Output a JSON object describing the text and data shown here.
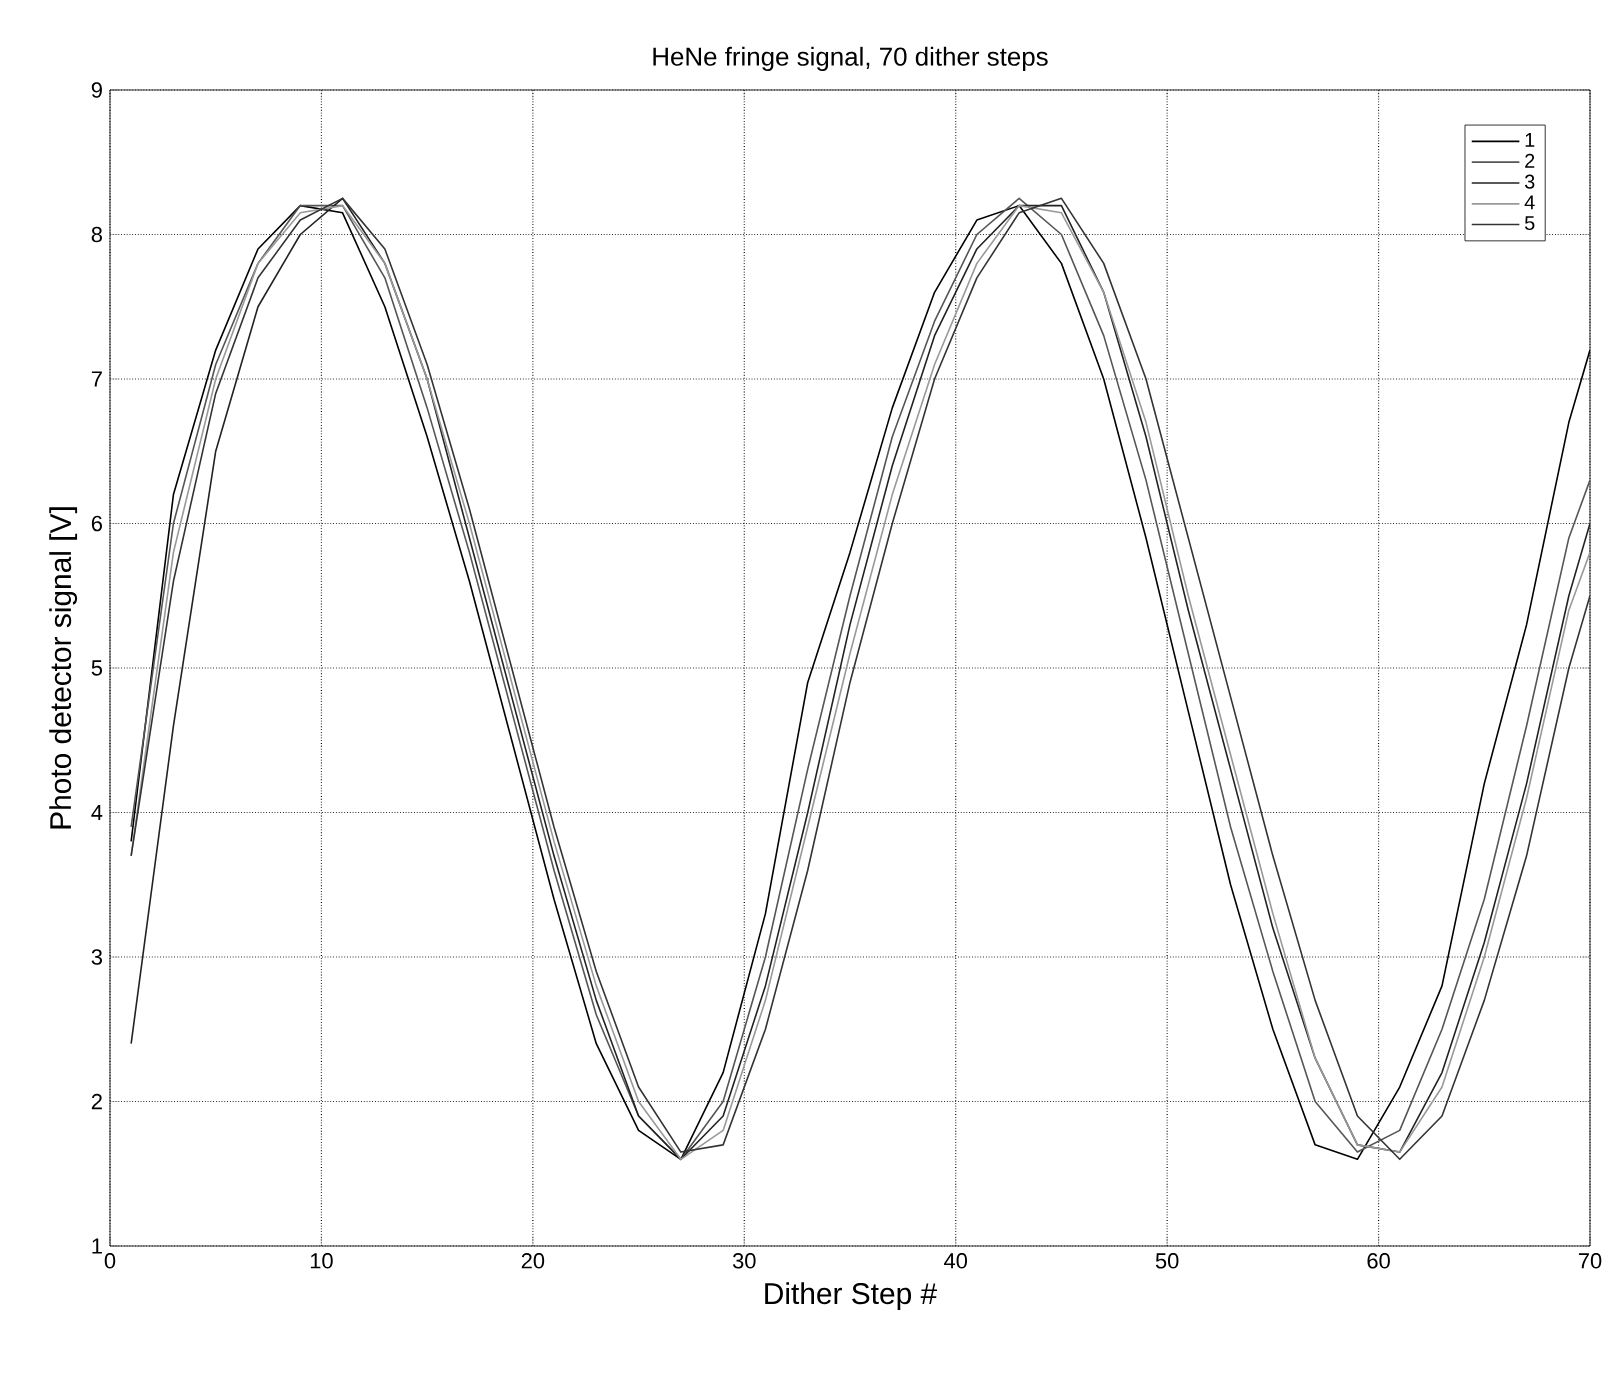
{
  "chart_data": {
    "type": "line",
    "title": "HeNe fringe signal, 70 dither steps",
    "xlabel": "Dither Step #",
    "ylabel": "Photo detector signal [V]",
    "x": [
      1,
      3,
      5,
      7,
      9,
      11,
      13,
      15,
      17,
      19,
      21,
      23,
      25,
      27,
      29,
      31,
      33,
      35,
      37,
      39,
      41,
      43,
      45,
      47,
      49,
      51,
      53,
      55,
      57,
      59,
      61,
      63,
      65,
      67,
      69,
      70
    ],
    "series": [
      {
        "name": "1",
        "color": "#000000",
        "values": [
          3.8,
          6.2,
          7.2,
          7.9,
          8.2,
          8.15,
          7.5,
          6.6,
          5.6,
          4.5,
          3.4,
          2.4,
          1.8,
          1.6,
          2.2,
          3.3,
          4.9,
          5.8,
          6.8,
          7.6,
          8.1,
          8.2,
          7.8,
          7.0,
          5.9,
          4.7,
          3.5,
          2.5,
          1.7,
          1.6,
          2.1,
          2.8,
          4.2,
          5.3,
          6.7,
          7.2
        ]
      },
      {
        "name": "2",
        "color": "#555555",
        "values": [
          3.9,
          6.0,
          7.1,
          7.8,
          8.2,
          8.2,
          7.7,
          6.8,
          5.8,
          4.7,
          3.6,
          2.6,
          1.9,
          1.6,
          2.0,
          3.0,
          4.3,
          5.5,
          6.6,
          7.4,
          8.0,
          8.25,
          8.0,
          7.3,
          6.3,
          5.1,
          3.9,
          2.9,
          2.0,
          1.65,
          1.8,
          2.5,
          3.4,
          4.6,
          5.9,
          6.3
        ]
      },
      {
        "name": "3",
        "color": "#222222",
        "values": [
          2.4,
          4.6,
          6.5,
          7.5,
          8.0,
          8.25,
          7.8,
          7.0,
          5.9,
          4.8,
          3.7,
          2.7,
          1.9,
          1.6,
          1.9,
          2.8,
          4.0,
          5.3,
          6.4,
          7.3,
          7.9,
          8.2,
          8.2,
          7.6,
          6.6,
          5.4,
          4.3,
          3.2,
          2.3,
          1.7,
          1.65,
          2.2,
          3.1,
          4.2,
          5.5,
          6.0
        ]
      },
      {
        "name": "4",
        "color": "#999999",
        "values": [
          3.7,
          5.8,
          7.0,
          7.8,
          8.15,
          8.2,
          7.8,
          7.0,
          6.0,
          4.9,
          3.8,
          2.8,
          2.0,
          1.6,
          1.8,
          2.7,
          3.9,
          5.1,
          6.2,
          7.1,
          7.8,
          8.2,
          8.15,
          7.6,
          6.7,
          5.5,
          4.4,
          3.3,
          2.3,
          1.7,
          1.65,
          2.1,
          3.0,
          4.1,
          5.4,
          5.8
        ]
      },
      {
        "name": "5",
        "color": "#333333",
        "values": [
          3.7,
          5.6,
          6.9,
          7.7,
          8.1,
          8.25,
          7.9,
          7.1,
          6.1,
          5.0,
          3.9,
          2.9,
          2.1,
          1.65,
          1.7,
          2.5,
          3.6,
          4.9,
          6.0,
          7.0,
          7.7,
          8.15,
          8.25,
          7.8,
          7.0,
          5.9,
          4.8,
          3.7,
          2.7,
          1.9,
          1.6,
          1.9,
          2.7,
          3.7,
          5.0,
          5.5
        ]
      }
    ],
    "xlim": [
      0,
      70
    ],
    "ylim": [
      1,
      9
    ],
    "xticks": [
      0,
      10,
      20,
      30,
      40,
      50,
      60,
      70
    ],
    "yticks": [
      1,
      2,
      3,
      4,
      5,
      6,
      7,
      8,
      9
    ],
    "grid": true,
    "legend": "top right"
  }
}
